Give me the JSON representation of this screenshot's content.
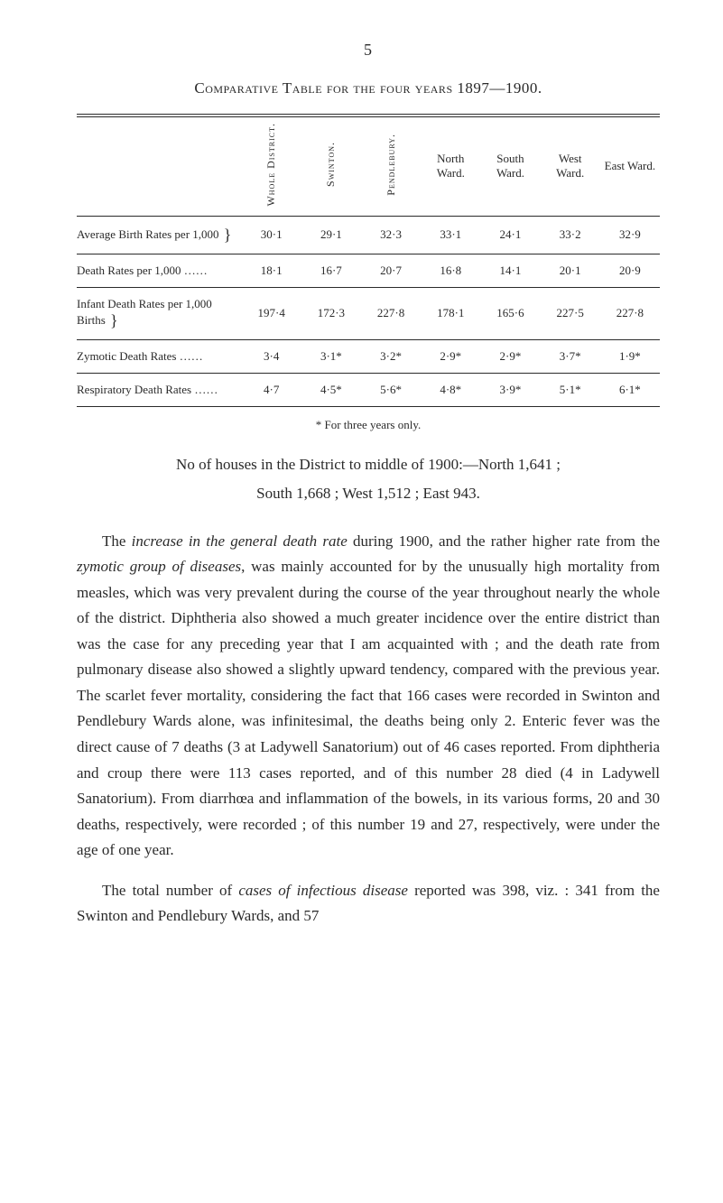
{
  "page_number": "5",
  "table_title": "Comparative Table for the four years 1897—1900.",
  "columns": [
    "Whole\nDistrict.",
    "Swinton.",
    "Pendlebury.",
    "North\nWard.",
    "South\nWard.",
    "West\nWard.",
    "East\nWard."
  ],
  "vertical_cols": [
    true,
    true,
    true,
    false,
    false,
    false,
    false
  ],
  "rows": [
    {
      "label": "Average Birth Rates per 1,000",
      "braced": true,
      "cells": [
        "30·1",
        "29·1",
        "32·3",
        "33·1",
        "24·1",
        "33·2",
        "32·9"
      ]
    },
    {
      "label": "Death Rates per 1,000",
      "braced": false,
      "cells": [
        "18·1",
        "16·7",
        "20·7",
        "16·8",
        "14·1",
        "20·1",
        "20·9"
      ]
    },
    {
      "label": "Infant Death Rates per 1,000 Births",
      "braced": true,
      "cells": [
        "197·4",
        "172·3",
        "227·8",
        "178·1",
        "165·6",
        "227·5",
        "227·8"
      ]
    },
    {
      "label": "Zymotic Death Rates",
      "braced": false,
      "cells": [
        "3·4",
        "3·1*",
        "3·2*",
        "2·9*",
        "2·9*",
        "3·7*",
        "1·9*"
      ]
    },
    {
      "label": "Respiratory Death Rates",
      "braced": false,
      "cells": [
        "4·7",
        "4·5*",
        "5·6*",
        "4·8*",
        "3·9*",
        "5·1*",
        "6·1*"
      ]
    }
  ],
  "footnote": "* For three years only.",
  "para1_a": "No of houses in the District to middle of 1900:—North 1,641 ;",
  "para1_b": "South 1,668 ;  West 1,512 ;  East 943.",
  "para2": "The increase in the general death rate during 1900, and the rather higher rate from the zymotic group of diseases, was mainly accounted for by the unusually high mortality from measles, which was very prevalent during the course of the year throughout nearly the whole of the district.  Diphtheria also showed a much greater incidence over the entire district than was the case for any preceding year that I am acquainted with ; and the death rate from pulmonary disease also showed a slightly upward tendency, compared with the previous year.  The scarlet fever mortality, considering the fact that 166 cases were recorded in Swinton and Pendlebury Wards alone, was infinitesimal, the deaths being only 2.  Enteric fever was the direct cause of 7 deaths (3 at Ladywell Sanatorium) out of 46 cases reported.  From diphtheria and croup there were 113 cases reported, and of this number 28 died (4 in Ladywell Sanatorium).  From diarrhœa and inflammation of the bowels, in its various forms, 20 and 30 deaths, respectively, were recorded ; of this number 19 and 27, respectively, were under the age of one year.",
  "para3": "The total number of cases of infectious disease reported was 398, viz. : 341 from the Swinton and Pendlebury Wards, and 57",
  "italics": {
    "p2_a": "increase in the general death rate",
    "p2_b": "zymotic group of diseases",
    "p3_a": "cases of infectious disease"
  }
}
